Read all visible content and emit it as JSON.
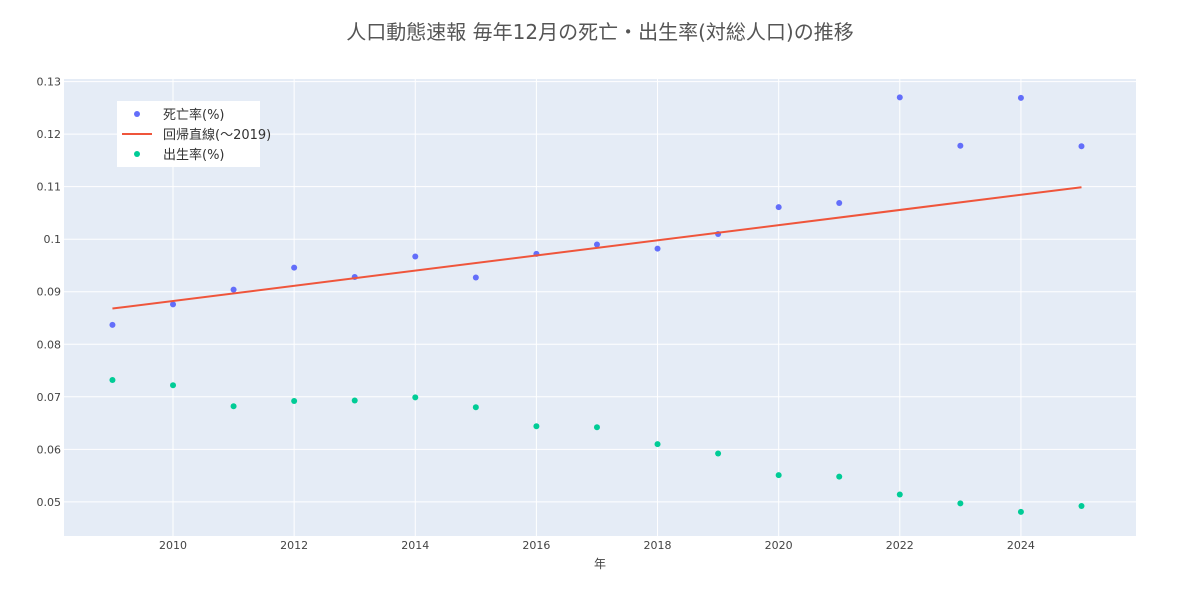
{
  "chart_data": {
    "type": "scatter",
    "title": "人口動態速報 毎年12月の死亡・出生率(対総人口)の推移",
    "xlabel": "年",
    "ylabel": "",
    "xlim": [
      2008.2,
      2025.9
    ],
    "ylim": [
      0.0435,
      0.1305
    ],
    "x_ticks": [
      2010,
      2012,
      2014,
      2016,
      2018,
      2020,
      2022,
      2024
    ],
    "y_ticks": [
      0.05,
      0.06,
      0.07,
      0.08,
      0.09,
      0.1,
      0.11,
      0.12,
      0.13
    ],
    "x_tick_labels": [
      "2010",
      "2012",
      "2014",
      "2016",
      "2018",
      "2020",
      "2022",
      "2024"
    ],
    "y_tick_labels": [
      "0.05",
      "0.06",
      "0.07",
      "0.08",
      "0.09",
      "0.1",
      "0.11",
      "0.12",
      "0.13"
    ],
    "grid": true,
    "legend_position": "top-left",
    "series": [
      {
        "name": "死亡率(%)",
        "mode": "markers",
        "color": "#636efa",
        "x": [
          2009,
          2010,
          2011,
          2012,
          2013,
          2014,
          2015,
          2016,
          2017,
          2018,
          2019,
          2020,
          2021,
          2022,
          2023,
          2024,
          2025
        ],
        "y": [
          0.0837,
          0.0876,
          0.0904,
          0.0946,
          0.0928,
          0.0967,
          0.0927,
          0.0972,
          0.099,
          0.0982,
          0.101,
          0.1061,
          0.1069,
          0.127,
          0.1178,
          0.1269,
          0.1177
        ]
      },
      {
        "name": "回帰直線(〜2019)",
        "mode": "line",
        "color": "#ef553b",
        "x": [
          2009,
          2025
        ],
        "y": [
          0.0868,
          0.1099
        ]
      },
      {
        "name": "出生率(%)",
        "mode": "markers",
        "color": "#00cc96",
        "x": [
          2009,
          2010,
          2011,
          2012,
          2013,
          2014,
          2015,
          2016,
          2017,
          2018,
          2019,
          2020,
          2021,
          2022,
          2023,
          2024,
          2025
        ],
        "y": [
          0.0732,
          0.0722,
          0.0682,
          0.0692,
          0.0693,
          0.0699,
          0.068,
          0.0644,
          0.0642,
          0.061,
          0.0592,
          0.0551,
          0.0548,
          0.0514,
          0.0497,
          0.0481,
          0.0492
        ]
      }
    ]
  },
  "colors": {
    "plot_background": "#e5ecf6",
    "grid": "#ffffff",
    "legend_background": "#ffffff"
  }
}
